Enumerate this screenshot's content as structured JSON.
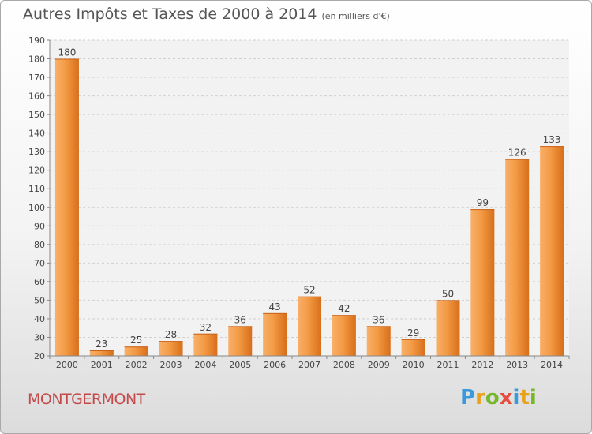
{
  "header": {
    "title": "Autres Impôts et Taxes de 2000 à 2014",
    "subtitle": "(en milliers d'€)"
  },
  "footer": {
    "commune": "MONTGERMONT",
    "logo": {
      "text": "Proxiti",
      "letters": [
        {
          "char": "P",
          "color": "#3a9ad9"
        },
        {
          "char": "r",
          "color": "#e8a21a"
        },
        {
          "char": "o",
          "color": "#77b82a"
        },
        {
          "char": "x",
          "color": "#e84c3d"
        },
        {
          "char": "i",
          "color": "#3a9ad9"
        },
        {
          "char": "t",
          "color": "#e8a21a"
        },
        {
          "char": "i",
          "color": "#77b82a"
        }
      ]
    }
  },
  "chart_data": {
    "type": "bar",
    "categories": [
      "2000",
      "2001",
      "2002",
      "2003",
      "2004",
      "2005",
      "2006",
      "2007",
      "2008",
      "2009",
      "2010",
      "2011",
      "2012",
      "2013",
      "2014"
    ],
    "values": [
      180,
      23,
      25,
      28,
      32,
      36,
      43,
      52,
      42,
      36,
      29,
      50,
      99,
      126,
      133
    ],
    "ylim": [
      20,
      190
    ],
    "yticks": [
      20,
      30,
      40,
      50,
      60,
      70,
      80,
      90,
      100,
      110,
      120,
      130,
      140,
      150,
      160,
      170,
      180,
      190
    ],
    "grid": true,
    "bar_color": "#f0923a",
    "bar_color_light": "#f8b06a",
    "bar_color_dark": "#d86e1a"
  }
}
